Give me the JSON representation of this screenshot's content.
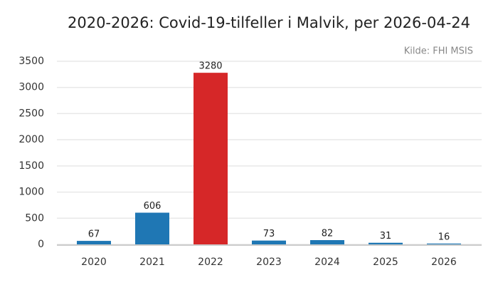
{
  "chart_data": {
    "type": "bar",
    "title": "2020-2026: Covid-19-tilfeller i Malvik, per 2026-04-24",
    "source": "Kilde: FHI MSIS",
    "categories": [
      "2020",
      "2021",
      "2022",
      "2023",
      "2024",
      "2025",
      "2026"
    ],
    "values": [
      67,
      606,
      3280,
      73,
      82,
      31,
      16
    ],
    "colors": [
      "#1f77b4",
      "#1f77b4",
      "#d62728",
      "#1f77b4",
      "#1f77b4",
      "#1f77b4",
      "#1f77b4"
    ],
    "ylim": [
      0,
      3500
    ],
    "yticks": [
      0,
      500,
      1000,
      1500,
      2000,
      2500,
      3000,
      3500
    ],
    "grid": true
  }
}
